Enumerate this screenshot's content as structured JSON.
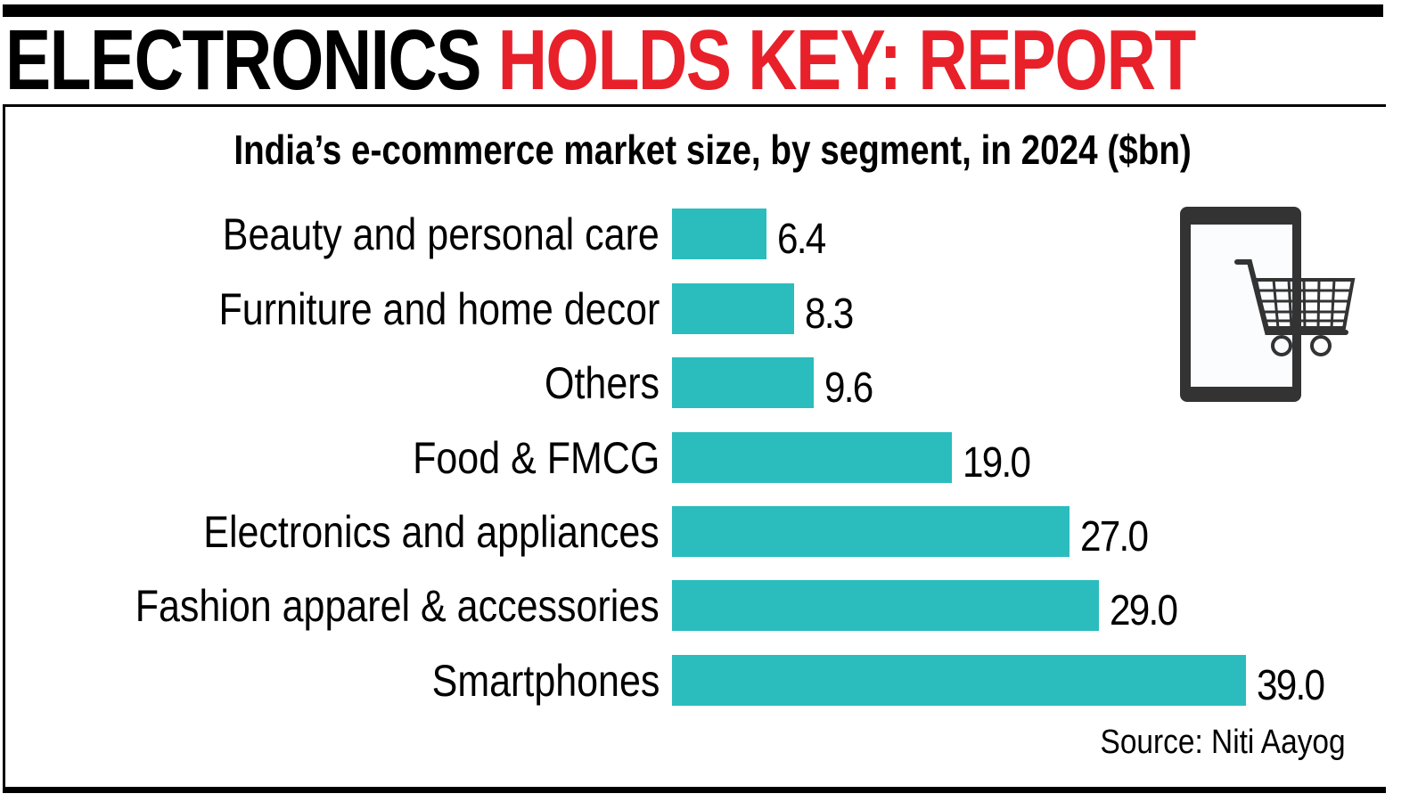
{
  "headline": {
    "part_black": "ELECTRONICS",
    "part_red": "HOLDS KEY: REPORT",
    "red_color": "#e8202a"
  },
  "subtitle": "India’s e-commerce market size, by segment, in 2024 ($bn)",
  "source": "Source: Niti Aayog",
  "icon": "tablet-shopping-cart-icon",
  "bar_color": "#2bbcbe",
  "rows": [
    {
      "label": "Beauty and personal care",
      "value": "6.4"
    },
    {
      "label": "Furniture and home decor",
      "value": "8.3"
    },
    {
      "label": "Others",
      "value": "9.6"
    },
    {
      "label": "Food & FMCG",
      "value": "19.0"
    },
    {
      "label": "Electronics and appliances",
      "value": "27.0"
    },
    {
      "label": "Fashion apparel & accessories",
      "value": "29.0"
    },
    {
      "label": "Smartphones",
      "value": "39.0"
    }
  ],
  "chart_data": {
    "type": "bar",
    "orientation": "horizontal",
    "title": "ELECTRONICS HOLDS KEY: REPORT",
    "subtitle": "India’s e-commerce market size, by segment, in 2024 ($bn)",
    "categories": [
      "Beauty and personal care",
      "Furniture and home decor",
      "Others",
      "Food & FMCG",
      "Electronics and appliances",
      "Fashion apparel & accessories",
      "Smartphones"
    ],
    "values": [
      6.4,
      8.3,
      9.6,
      19.0,
      27.0,
      29.0,
      39.0
    ],
    "xlabel": "",
    "ylabel": "",
    "unit": "$bn",
    "xlim": [
      0,
      39.0
    ],
    "grid": false,
    "legend": "none",
    "data_labels": true,
    "bar_color": "#2bbcbe",
    "source": "Source: Niti Aayog"
  }
}
